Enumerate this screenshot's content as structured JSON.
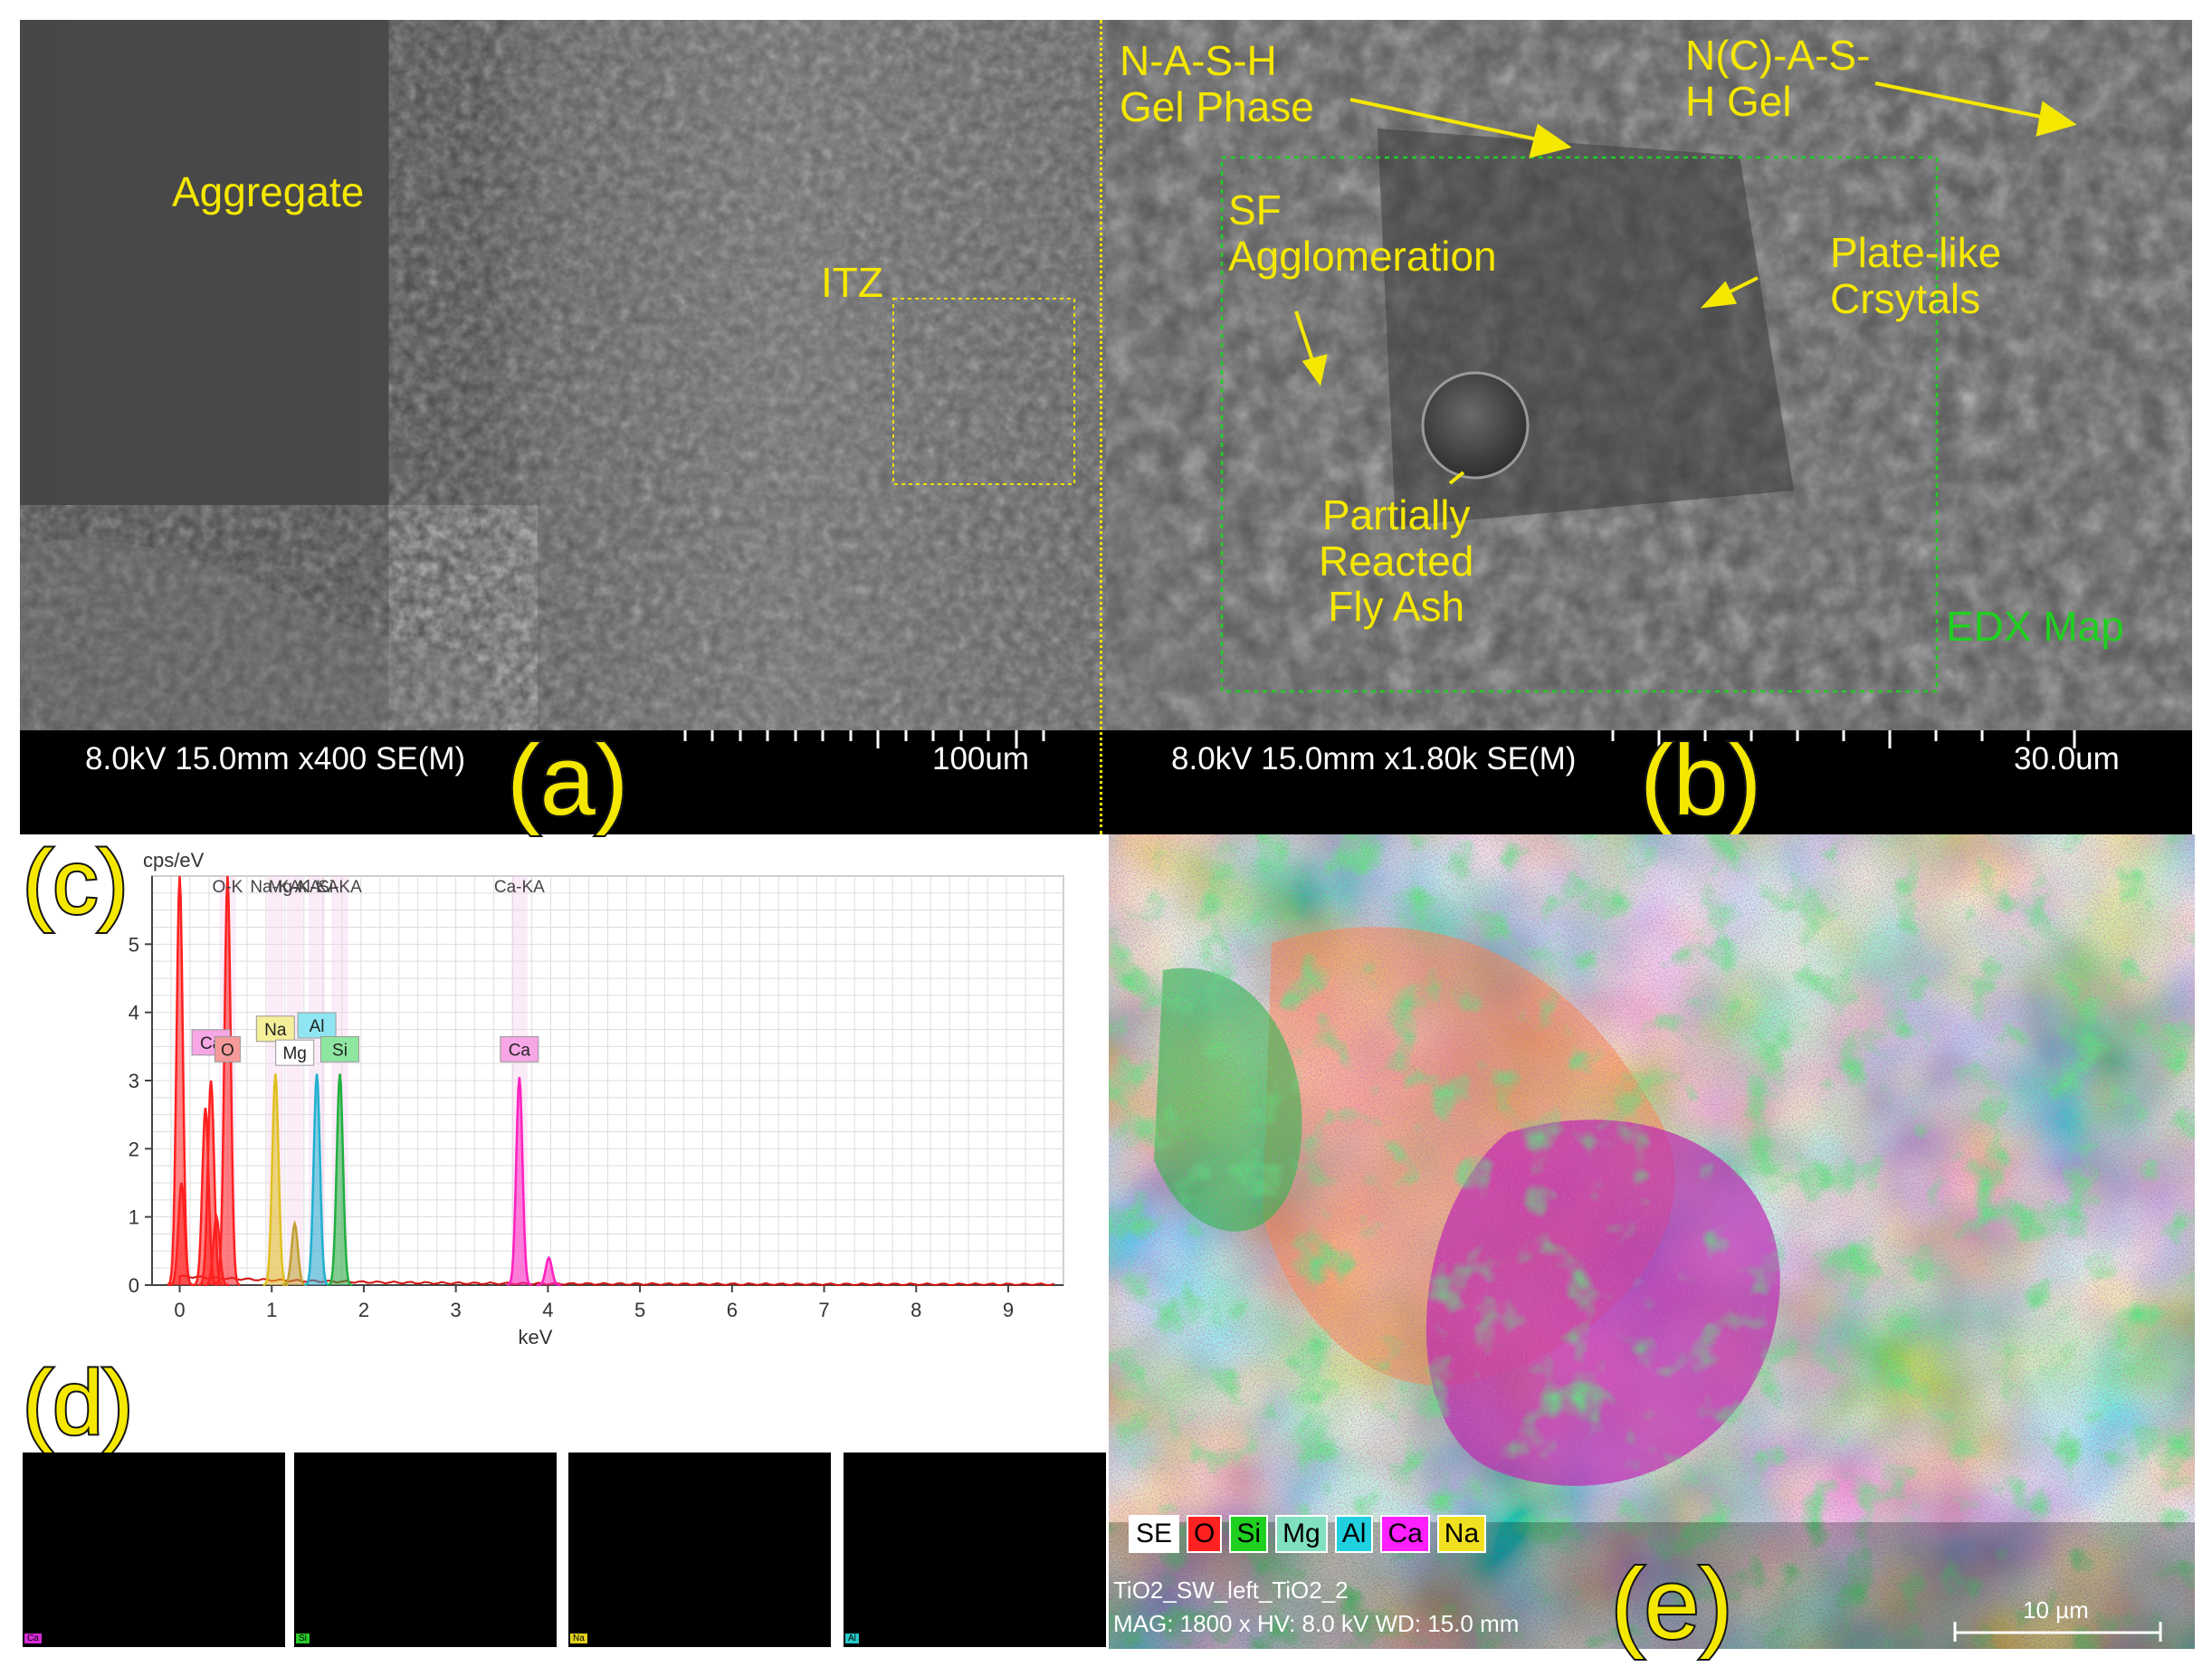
{
  "panel_a": {
    "letter": "(a)",
    "labels": {
      "aggregate": "Aggregate",
      "itz": "ITZ"
    },
    "databar": {
      "info": "8.0kV 15.0mm x400 SE(M)",
      "scale": "100um"
    }
  },
  "panel_b": {
    "letter": "(b)",
    "labels": {
      "nash": "N-A-S-H\nGel Phase",
      "ncash": "N(C)-A-S-\nH Gel",
      "sf": "SF\nAgglomeration",
      "plate": "Plate-like\nCrsytals",
      "fly": "Partially\nReacted\nFly Ash",
      "edx": "EDX Map"
    },
    "databar": {
      "info": "8.0kV 15.0mm x1.80k SE(M)",
      "scale": "30.0um"
    }
  },
  "panel_c": {
    "letter": "(c)"
  },
  "panel_d": {
    "letter": "(d)",
    "maps": [
      {
        "element": "Ca",
        "color": "#d62ad6"
      },
      {
        "element": "Si",
        "color": "#28c828"
      },
      {
        "element": "Na",
        "color": "#e0d020"
      },
      {
        "element": "Al",
        "color": "#28c8c8"
      }
    ]
  },
  "panel_e": {
    "letter": "(e)",
    "legend": [
      {
        "label": "SE",
        "color": "#ffffff"
      },
      {
        "label": "O",
        "color": "#ff2020"
      },
      {
        "label": "Si",
        "color": "#20d020"
      },
      {
        "label": "Mg",
        "color": "#80e0c0"
      },
      {
        "label": "Al",
        "color": "#20d0e0"
      },
      {
        "label": "Ca",
        "color": "#ff20ff"
      },
      {
        "label": "Na",
        "color": "#f0e020"
      }
    ],
    "caption1": "TiO2_SW_left_TiO2_2",
    "caption2": "MAG: 1800 x   HV: 8.0 kV   WD: 15.0 mm",
    "scale": "10 µm"
  },
  "chart_data": {
    "type": "line",
    "xlabel": "keV",
    "ylabel": "cps/eV",
    "xlim": [
      -0.3,
      9.6
    ],
    "ylim": [
      0,
      6
    ],
    "xticks": [
      0,
      1,
      2,
      3,
      4,
      5,
      6,
      7,
      8,
      9
    ],
    "yticks": [
      0,
      1,
      2,
      3,
      4,
      5
    ],
    "top_labels": [
      {
        "text": "O-K",
        "x": 0.52
      },
      {
        "text": "Na-KA",
        "x": 1.04
      },
      {
        "text": "Mg-KA",
        "x": 1.25
      },
      {
        "text": "Al-KA",
        "x": 1.49
      },
      {
        "text": "Si-KA",
        "x": 1.74
      },
      {
        "text": "Ca-KA",
        "x": 3.69
      }
    ],
    "peak_labels": [
      {
        "text": "Ca",
        "x": 0.34,
        "y": 3.4,
        "color": "#f7a6e6"
      },
      {
        "text": "O",
        "x": 0.52,
        "y": 3.3,
        "color": "#f49a9a"
      },
      {
        "text": "Na",
        "x": 1.04,
        "y": 3.6,
        "color": "#f5ef9a"
      },
      {
        "text": "Mg",
        "x": 1.25,
        "y": 3.25,
        "color": "#ffffff"
      },
      {
        "text": "Al",
        "x": 1.49,
        "y": 3.65,
        "color": "#8fe6f2"
      },
      {
        "text": "Si",
        "x": 1.74,
        "y": 3.3,
        "color": "#8fe6a0"
      },
      {
        "text": "Ca",
        "x": 3.69,
        "y": 3.3,
        "color": "#f7a6e6"
      }
    ],
    "series": [
      {
        "name": "O",
        "color": "#ff2020",
        "x": [
          0.52
        ],
        "values": [
          6.0
        ]
      },
      {
        "name": "Ca-L",
        "color": "#ff2020",
        "x": [
          0.0,
          0.02,
          0.28,
          0.34,
          0.4
        ],
        "values": [
          6.0,
          1.5,
          2.6,
          3.0,
          1.0
        ]
      },
      {
        "name": "Na",
        "color": "#e0c020",
        "x": [
          1.04
        ],
        "values": [
          3.1
        ]
      },
      {
        "name": "Mg",
        "color": "#c0a030",
        "x": [
          1.25
        ],
        "values": [
          0.9
        ]
      },
      {
        "name": "Al",
        "color": "#20b0d0",
        "x": [
          1.49
        ],
        "values": [
          3.1
        ]
      },
      {
        "name": "Si",
        "color": "#20b040",
        "x": [
          1.74
        ],
        "values": [
          3.1
        ]
      },
      {
        "name": "Ca",
        "color": "#ff20c0",
        "x": [
          3.69,
          4.01
        ],
        "values": [
          3.05,
          0.4
        ]
      }
    ]
  }
}
